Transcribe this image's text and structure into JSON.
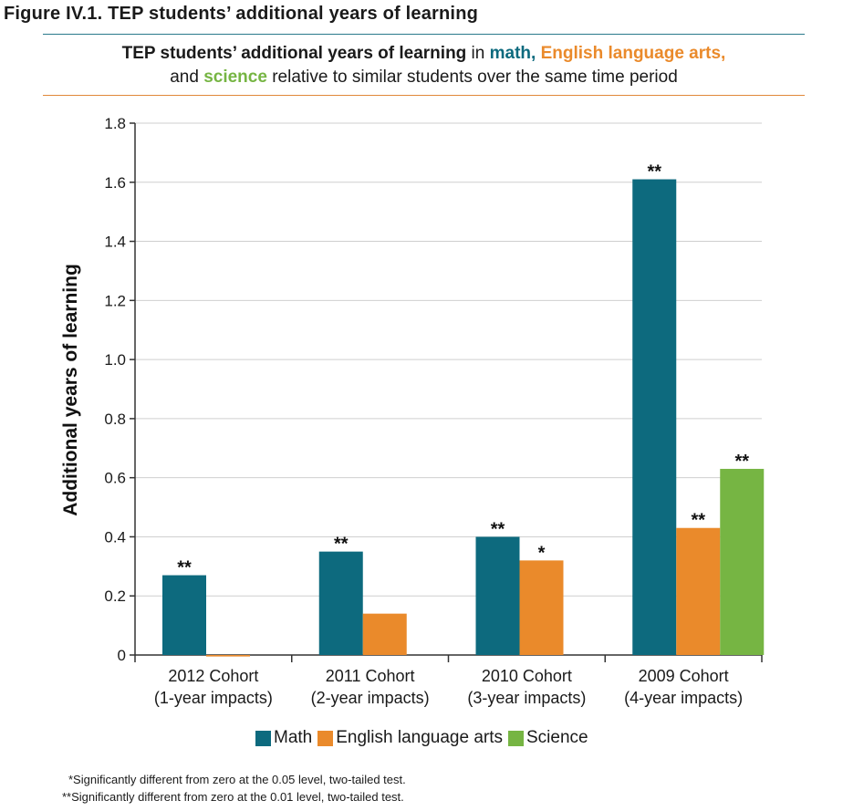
{
  "figure_title": "Figure IV.1. TEP students’ additional years of learning",
  "subtitle": {
    "line1_bold": "TEP students’ additional years of learning",
    "line1_in": " in ",
    "math_word": "math,",
    "ela_word": " English language arts,",
    "line2_and": "and ",
    "science_word": "science",
    "line2_rest": " relative to similar students over the same time period"
  },
  "colors": {
    "math": "#0d6a7e",
    "ela": "#ea8a2b",
    "science": "#76b543",
    "grid": "#cfcfcf",
    "axis": "#333333"
  },
  "chart_data": {
    "type": "bar",
    "ylabel": "Additional years of learning",
    "ylim": [
      0,
      1.8
    ],
    "yticks": [
      0,
      0.2,
      0.4,
      0.6,
      0.8,
      1.0,
      1.2,
      1.4,
      1.6,
      1.8
    ],
    "ytick_labels": [
      "0",
      "0.2",
      "0.4",
      "0.6",
      "0.8",
      "1.0",
      "1.2",
      "1.4",
      "1.6",
      "1.8"
    ],
    "grid": true,
    "categories": [
      [
        "2012 Cohort",
        "(1-year impacts)"
      ],
      [
        "2011 Cohort",
        "(2-year impacts)"
      ],
      [
        "2010 Cohort",
        "(3-year impacts)"
      ],
      [
        "2009 Cohort",
        "(4-year impacts)"
      ]
    ],
    "series": [
      {
        "name": "Math",
        "color_key": "math",
        "values": [
          0.27,
          0.35,
          0.4,
          1.61
        ],
        "sig": [
          "**",
          "**",
          "**",
          "**"
        ]
      },
      {
        "name": "English language arts",
        "color_key": "ela",
        "values": [
          -0.005,
          0.14,
          0.32,
          0.43
        ],
        "sig": [
          "",
          "",
          "*",
          "**"
        ]
      },
      {
        "name": "Science",
        "color_key": "science",
        "values": [
          null,
          null,
          null,
          0.63
        ],
        "sig": [
          "",
          "",
          "",
          "**"
        ]
      }
    ],
    "legend_position": "bottom"
  },
  "footnotes": [
    "*Significantly different from zero at the 0.05 level, two-tailed test.",
    "**Significantly different from zero at the 0.01 level, two-tailed test."
  ]
}
